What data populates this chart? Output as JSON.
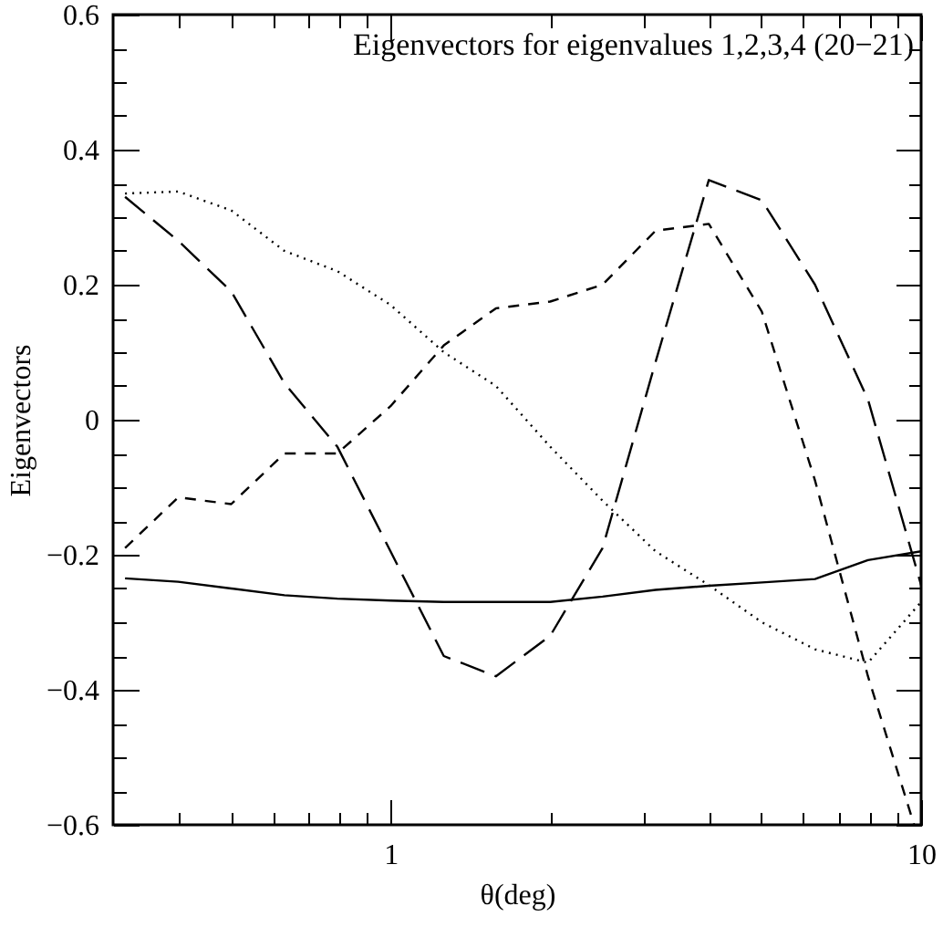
{
  "chart_data": {
    "type": "line",
    "title": "Eigenvectors for eigenvalues 1,2,3,4 (20−21)",
    "xlabel": "θ(deg)",
    "ylabel": "Eigenvectors",
    "log": "x",
    "x": [
      0.316,
      0.398,
      0.501,
      0.631,
      0.794,
      1,
      1.26,
      1.58,
      2,
      2.51,
      3.16,
      3.98,
      5.01,
      6.31,
      7.94,
      10
    ],
    "series": [
      {
        "color": "#000000",
        "line_style": "solid",
        "values": [
          -0.235,
          -0.24,
          -0.25,
          -0.26,
          -0.265,
          -0.268,
          -0.27,
          -0.27,
          -0.27,
          -0.262,
          -0.252,
          -0.246,
          -0.241,
          -0.236,
          -0.208,
          -0.195
        ]
      },
      {
        "color": "#000000",
        "line_style": "dashed",
        "x": [
          0.316,
          0.398,
          0.501,
          0.631,
          0.794,
          1,
          1.26,
          1.58,
          2,
          2.51,
          3.16,
          3.98,
          5.01,
          6.31,
          7.94,
          9.7
        ],
        "values": [
          -0.19,
          -0.115,
          -0.125,
          -0.05,
          -0.05,
          0.02,
          0.11,
          0.165,
          0.175,
          0.2,
          0.28,
          0.29,
          0.16,
          -0.09,
          -0.38,
          -0.6
        ]
      },
      {
        "color": "#000000",
        "line_style": "dotted",
        "values": [
          0.335,
          0.338,
          0.31,
          0.25,
          0.22,
          0.17,
          0.1,
          0.05,
          -0.04,
          -0.12,
          -0.195,
          -0.245,
          -0.3,
          -0.34,
          -0.36,
          -0.27
        ]
      },
      {
        "color": "#000000",
        "line_style": "dashed",
        "values": [
          0.33,
          0.265,
          0.19,
          0.054,
          -0.04,
          -0.195,
          -0.35,
          -0.38,
          -0.32,
          -0.19,
          0.086,
          0.355,
          0.325,
          0.2,
          0.03,
          -0.245
        ]
      }
    ],
    "xlim": [
      0.3,
      10
    ],
    "xticks": [
      {
        "value": 0.4,
        "label": null
      },
      {
        "value": 0.5,
        "label": null
      },
      {
        "value": 0.6,
        "label": null
      },
      {
        "value": 0.7,
        "label": null
      },
      {
        "value": 0.8,
        "label": null
      },
      {
        "value": 0.9,
        "label": null
      },
      1,
      {
        "value": 2,
        "label": null
      },
      {
        "value": 3,
        "label": null
      },
      {
        "value": 4,
        "label": null
      },
      {
        "value": 5,
        "label": null
      },
      {
        "value": 6,
        "label": null
      },
      {
        "value": 7,
        "label": null
      },
      {
        "value": 8,
        "label": null
      },
      {
        "value": 9,
        "label": null
      },
      10
    ],
    "ylim": [
      -0.6,
      0.6
    ],
    "yticks": [
      {
        "value": -0.6,
        "label": "−0.6"
      },
      {
        "value": -0.55,
        "label": null
      },
      {
        "value": -0.5,
        "label": null
      },
      {
        "value": -0.45,
        "label": null
      },
      {
        "value": -0.4,
        "label": "−0.4"
      },
      {
        "value": -0.35,
        "label": null
      },
      {
        "value": -0.3,
        "label": null
      },
      {
        "value": -0.25,
        "label": null
      },
      {
        "value": -0.2,
        "label": "−0.2"
      },
      {
        "value": -0.15,
        "label": null
      },
      {
        "value": -0.1,
        "label": null
      },
      {
        "value": -0.05,
        "label": null
      },
      0,
      {
        "value": 0.05,
        "label": null
      },
      {
        "value": 0.1,
        "label": null
      },
      {
        "value": 0.15,
        "label": null
      },
      0.2,
      {
        "value": 0.25,
        "label": null
      },
      {
        "value": 0.3,
        "label": null
      },
      {
        "value": 0.35,
        "label": null
      },
      0.4,
      {
        "value": 0.45,
        "label": null
      },
      {
        "value": 0.5,
        "label": null
      },
      {
        "value": 0.55,
        "label": null
      },
      0.6
    ]
  }
}
